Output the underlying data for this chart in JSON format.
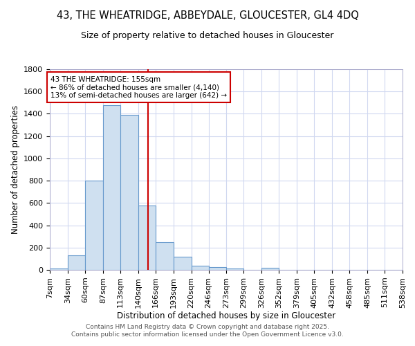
{
  "title1": "43, THE WHEATRIDGE, ABBEYDALE, GLOUCESTER, GL4 4DQ",
  "title2": "Size of property relative to detached houses in Gloucester",
  "xlabel": "Distribution of detached houses by size in Gloucester",
  "ylabel": "Number of detached properties",
  "bin_edges": [
    7,
    34,
    60,
    87,
    113,
    140,
    166,
    193,
    220,
    246,
    273,
    299,
    326,
    352,
    379,
    405,
    432,
    458,
    485,
    511,
    538
  ],
  "bar_heights": [
    10,
    130,
    800,
    1480,
    1390,
    575,
    250,
    115,
    35,
    25,
    15,
    0,
    20,
    0,
    0,
    0,
    0,
    0,
    0,
    0
  ],
  "bar_color": "#cfe0f0",
  "bar_edge_color": "#6699cc",
  "grid_color": "#d0d8f0",
  "background_color": "#ffffff",
  "plot_bg_color": "#ffffff",
  "vline_x": 155,
  "vline_color": "#cc0000",
  "annotation_lines": [
    "43 THE WHEATRIDGE: 155sqm",
    "← 86% of detached houses are smaller (4,140)",
    "13% of semi-detached houses are larger (642) →"
  ],
  "annotation_box_color": "#ffffff",
  "annotation_box_edge": "#cc0000",
  "footer_line1": "Contains HM Land Registry data © Crown copyright and database right 2025.",
  "footer_line2": "Contains public sector information licensed under the Open Government Licence v3.0.",
  "ylim": [
    0,
    1800
  ],
  "yticks": [
    0,
    200,
    400,
    600,
    800,
    1000,
    1200,
    1400,
    1600,
    1800
  ],
  "tick_labels": [
    "7sqm",
    "34sqm",
    "60sqm",
    "87sqm",
    "113sqm",
    "140sqm",
    "166sqm",
    "193sqm",
    "220sqm",
    "246sqm",
    "273sqm",
    "299sqm",
    "326sqm",
    "352sqm",
    "379sqm",
    "405sqm",
    "432sqm",
    "458sqm",
    "485sqm",
    "511sqm",
    "538sqm"
  ],
  "title1_fontsize": 10.5,
  "title2_fontsize": 9,
  "axis_fontsize": 8.5,
  "tick_fontsize": 8,
  "footer_fontsize": 6.5
}
